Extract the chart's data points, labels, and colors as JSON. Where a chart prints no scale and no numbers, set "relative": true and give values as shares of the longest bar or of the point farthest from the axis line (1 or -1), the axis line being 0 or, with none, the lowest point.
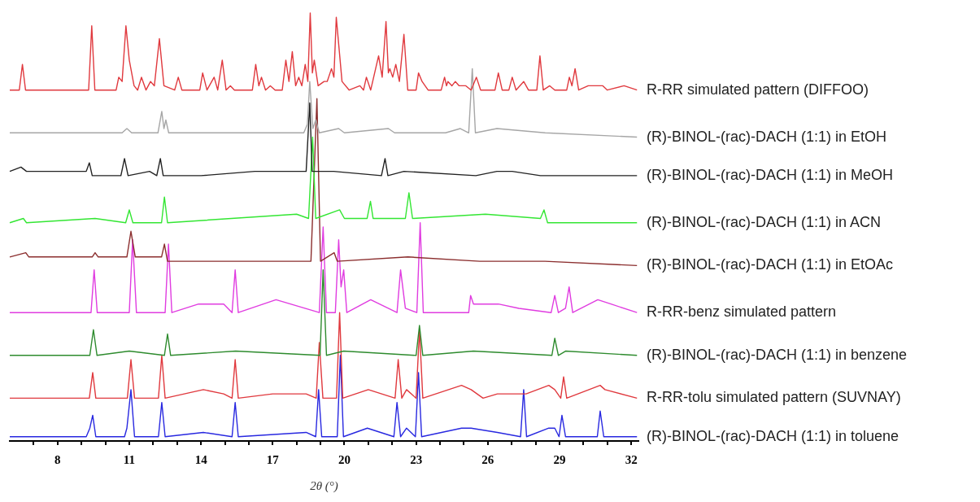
{
  "chart_data": {
    "type": "line",
    "xlabel": "2θ (°)",
    "relative": true,
    "grid": false,
    "legend": false,
    "marker": "none",
    "line_style": "solid",
    "xlim": [
      6,
      32.3
    ],
    "xticks": [
      {
        "value": 7,
        "label": null
      },
      8,
      {
        "value": 9,
        "label": null
      },
      {
        "value": 10,
        "label": null
      },
      11,
      {
        "value": 12,
        "label": null
      },
      {
        "value": 13,
        "label": null
      },
      14,
      {
        "value": 15,
        "label": null
      },
      {
        "value": 16,
        "label": null
      },
      17,
      {
        "value": 18,
        "label": null
      },
      {
        "value": 19,
        "label": null
      },
      20,
      {
        "value": 21,
        "label": null
      },
      {
        "value": 22,
        "label": null
      },
      23,
      {
        "value": 24,
        "label": null
      },
      {
        "value": 25,
        "label": null
      },
      26,
      {
        "value": 27,
        "label": null
      },
      {
        "value": 28,
        "label": null
      },
      29,
      {
        "value": 30,
        "label": null
      },
      {
        "value": 31,
        "label": null
      },
      32
    ],
    "series": [
      {
        "name": "R-RR simulated pattern (DIFFOO)",
        "color": "#e0393e",
        "x": [
          6.0,
          6.4,
          6.53,
          6.66,
          9.3,
          9.43,
          9.56,
          10.45,
          10.56,
          10.7,
          10.86,
          11.0,
          11.2,
          11.35,
          11.51,
          11.7,
          11.89,
          12.05,
          12.26,
          12.45,
          12.9,
          13.05,
          13.2,
          13.95,
          14.07,
          14.25,
          14.55,
          14.7,
          14.89,
          15.05,
          15.23,
          15.4,
          16.15,
          16.29,
          16.42,
          16.53,
          16.7,
          16.9,
          17.1,
          17.4,
          17.55,
          17.68,
          17.82,
          17.96,
          18.09,
          18.22,
          18.36,
          18.47,
          18.57,
          18.66,
          18.74,
          18.9,
          19.15,
          19.28,
          19.46,
          19.56,
          19.66,
          19.9,
          20.2,
          20.65,
          20.8,
          20.92,
          21.1,
          21.43,
          21.58,
          21.74,
          21.84,
          21.9,
          22.02,
          22.15,
          22.3,
          22.49,
          22.65,
          23.0,
          23.1,
          23.25,
          23.5,
          24.05,
          24.19,
          24.27,
          24.33,
          24.5,
          24.64,
          24.8,
          25.08,
          25.3,
          25.52,
          25.7,
          26.3,
          26.44,
          26.6,
          26.88,
          27.02,
          27.18,
          27.5,
          27.7,
          28.05,
          28.18,
          28.32,
          28.59,
          28.8,
          29.3,
          29.41,
          29.52,
          29.65,
          29.8,
          30.2,
          30.81,
          31.0,
          31.7,
          32.24
        ],
        "values": [
          0.82,
          0.82,
          0.88,
          0.82,
          0.82,
          0.97,
          0.82,
          0.82,
          0.85,
          0.84,
          0.97,
          0.89,
          0.83,
          0.82,
          0.85,
          0.82,
          0.84,
          0.83,
          0.94,
          0.83,
          0.82,
          0.85,
          0.82,
          0.82,
          0.86,
          0.82,
          0.85,
          0.82,
          0.89,
          0.82,
          0.83,
          0.82,
          0.82,
          0.88,
          0.83,
          0.85,
          0.82,
          0.83,
          0.82,
          0.82,
          0.89,
          0.84,
          0.91,
          0.83,
          0.85,
          0.83,
          0.88,
          0.84,
          1.0,
          0.86,
          0.89,
          0.83,
          0.84,
          0.84,
          0.87,
          0.85,
          0.99,
          0.84,
          0.82,
          0.83,
          0.82,
          0.85,
          0.82,
          0.9,
          0.85,
          0.98,
          0.86,
          0.87,
          0.85,
          0.88,
          0.84,
          0.95,
          0.82,
          0.82,
          0.86,
          0.84,
          0.82,
          0.82,
          0.85,
          0.83,
          0.84,
          0.83,
          0.84,
          0.83,
          0.83,
          0.82,
          0.85,
          0.82,
          0.82,
          0.86,
          0.82,
          0.82,
          0.85,
          0.82,
          0.84,
          0.82,
          0.82,
          0.9,
          0.82,
          0.83,
          0.82,
          0.82,
          0.85,
          0.83,
          0.87,
          0.82,
          0.83,
          0.83,
          0.82,
          0.83,
          0.82
        ]
      },
      {
        "name": "(R)-BINOL-(rac)-DACH (1:1) in EtOH",
        "color": "#a6a6a6",
        "x": [
          6.0,
          9.5,
          10.7,
          10.9,
          11.1,
          12.2,
          12.36,
          12.45,
          12.53,
          12.65,
          18.3,
          18.45,
          18.55,
          18.68,
          18.8,
          18.95,
          19.76,
          20.0,
          21.84,
          22.1,
          24.23,
          24.85,
          25.2,
          25.35,
          25.48,
          26.38,
          28.4,
          32.24
        ],
        "values": [
          0.72,
          0.72,
          0.72,
          0.73,
          0.72,
          0.72,
          0.77,
          0.73,
          0.75,
          0.72,
          0.72,
          0.74,
          0.84,
          0.73,
          0.75,
          0.72,
          0.73,
          0.72,
          0.73,
          0.72,
          0.72,
          0.73,
          0.72,
          0.87,
          0.72,
          0.73,
          0.72,
          0.71
        ]
      },
      {
        "name": "(R)-BINOL-(rac)-DACH (1:1) in MeOH",
        "color": "#222222",
        "x": [
          6.0,
          6.47,
          6.7,
          9.2,
          9.33,
          9.45,
          10.65,
          10.8,
          10.95,
          11.85,
          12.15,
          12.3,
          12.42,
          14.0,
          16.25,
          17.82,
          18.4,
          18.55,
          18.65,
          18.74,
          19.55,
          21.55,
          21.7,
          21.82,
          22.49,
          25.5,
          26.38,
          27.02,
          28.2,
          32.24
        ],
        "values": [
          0.63,
          0.64,
          0.63,
          0.63,
          0.65,
          0.62,
          0.62,
          0.66,
          0.62,
          0.63,
          0.62,
          0.66,
          0.62,
          0.62,
          0.63,
          0.63,
          0.63,
          0.79,
          0.63,
          0.63,
          0.63,
          0.62,
          0.66,
          0.62,
          0.63,
          0.62,
          0.63,
          0.63,
          0.62,
          0.62
        ]
      },
      {
        "name": "(R)-BINOL-(rac)-DACH (1:1) in ACN",
        "color": "#33e633",
        "x": [
          6.0,
          6.57,
          6.7,
          9.57,
          10.85,
          11.0,
          11.15,
          12.35,
          12.47,
          12.6,
          18.0,
          18.5,
          18.67,
          18.8,
          19.8,
          20.0,
          20.95,
          21.09,
          21.2,
          22.55,
          22.7,
          22.85,
          25.9,
          28.2,
          28.35,
          28.5,
          32.24
        ],
        "values": [
          0.51,
          0.52,
          0.51,
          0.52,
          0.51,
          0.54,
          0.51,
          0.51,
          0.57,
          0.51,
          0.53,
          0.52,
          0.71,
          0.52,
          0.54,
          0.52,
          0.52,
          0.56,
          0.52,
          0.52,
          0.58,
          0.52,
          0.53,
          0.52,
          0.54,
          0.51,
          0.51
        ]
      },
      {
        "name": "(R)-BINOL-(rac)-DACH (1:1) in EtOAc",
        "color": "#8b2e2e",
        "x": [
          6.0,
          6.67,
          6.8,
          9.45,
          9.57,
          9.7,
          10.9,
          11.07,
          11.25,
          12.06,
          12.35,
          12.47,
          12.6,
          15.3,
          18.6,
          18.85,
          19.0,
          19.57,
          19.7,
          22.66,
          25.66,
          28.39,
          32.24
        ],
        "values": [
          0.43,
          0.44,
          0.43,
          0.43,
          0.44,
          0.43,
          0.43,
          0.49,
          0.43,
          0.43,
          0.43,
          0.46,
          0.42,
          0.42,
          0.42,
          0.8,
          0.42,
          0.44,
          0.42,
          0.43,
          0.42,
          0.42,
          0.41
        ]
      },
      {
        "name": "R-RR-benz simulated pattern",
        "color": "#e03ce0",
        "x": [
          6.0,
          9.4,
          9.53,
          9.66,
          11.0,
          11.14,
          11.3,
          12.5,
          12.64,
          12.78,
          13.9,
          14.95,
          15.3,
          15.43,
          15.56,
          17.14,
          18.95,
          19.11,
          19.25,
          19.62,
          19.76,
          19.86,
          19.97,
          20.1,
          21.1,
          22.2,
          22.35,
          22.55,
          23.03,
          23.17,
          23.3,
          25.2,
          25.28,
          25.4,
          26.44,
          27.3,
          28.65,
          28.8,
          28.95,
          29.25,
          29.4,
          29.55,
          30.6,
          31.15,
          32.24
        ],
        "values": [
          0.3,
          0.3,
          0.4,
          0.3,
          0.3,
          0.47,
          0.3,
          0.3,
          0.46,
          0.3,
          0.32,
          0.32,
          0.3,
          0.4,
          0.3,
          0.33,
          0.3,
          0.5,
          0.3,
          0.3,
          0.47,
          0.36,
          0.4,
          0.3,
          0.33,
          0.3,
          0.4,
          0.31,
          0.3,
          0.51,
          0.3,
          0.3,
          0.34,
          0.32,
          0.32,
          0.31,
          0.3,
          0.34,
          0.3,
          0.31,
          0.36,
          0.3,
          0.33,
          0.32,
          0.3
        ]
      },
      {
        "name": "(R)-BINOL-(rac)-DACH (1:1) in benzene",
        "color": "#2e8b2e",
        "x": [
          6.0,
          9.35,
          9.5,
          9.65,
          11.0,
          12.47,
          12.6,
          12.73,
          15.45,
          18.98,
          19.11,
          19.25,
          19.97,
          23.0,
          23.14,
          23.28,
          25.4,
          28.68,
          28.8,
          28.95,
          29.25,
          32.24
        ],
        "values": [
          0.2,
          0.2,
          0.26,
          0.2,
          0.21,
          0.2,
          0.25,
          0.2,
          0.21,
          0.2,
          0.4,
          0.2,
          0.21,
          0.2,
          0.27,
          0.2,
          0.21,
          0.2,
          0.24,
          0.2,
          0.21,
          0.2
        ]
      },
      {
        "name": "R-RR-tolu simulated pattern (SUVNAY)",
        "color": "#e0393e",
        "x": [
          6.0,
          9.33,
          9.47,
          9.6,
          10.92,
          11.07,
          11.22,
          12.22,
          12.36,
          12.5,
          14.1,
          14.95,
          15.3,
          15.43,
          15.56,
          17.0,
          18.4,
          18.82,
          18.95,
          19.1,
          19.67,
          19.8,
          19.93,
          21.0,
          22.12,
          22.25,
          22.4,
          22.6,
          23.0,
          23.14,
          23.28,
          24.9,
          25.3,
          25.8,
          26.4,
          27.6,
          28.55,
          28.8,
          29.05,
          29.17,
          29.3,
          30.7,
          30.9,
          32.24
        ],
        "values": [
          0.1,
          0.1,
          0.16,
          0.1,
          0.1,
          0.19,
          0.1,
          0.1,
          0.2,
          0.1,
          0.12,
          0.11,
          0.1,
          0.19,
          0.1,
          0.11,
          0.11,
          0.1,
          0.23,
          0.1,
          0.1,
          0.3,
          0.1,
          0.12,
          0.1,
          0.19,
          0.1,
          0.12,
          0.1,
          0.26,
          0.1,
          0.13,
          0.12,
          0.1,
          0.11,
          0.11,
          0.13,
          0.12,
          0.1,
          0.15,
          0.1,
          0.13,
          0.12,
          0.1
        ]
      },
      {
        "name": "(R)-BINOL-(rac)-DACH (1:1) in toluene",
        "color": "#2828e0",
        "x": [
          6.0,
          9.2,
          9.35,
          9.47,
          9.6,
          10.8,
          10.9,
          11.07,
          11.22,
          12.22,
          12.36,
          12.5,
          14.1,
          15.3,
          15.43,
          15.56,
          18.4,
          18.8,
          18.92,
          19.05,
          19.7,
          19.83,
          19.96,
          20.96,
          22.07,
          22.2,
          22.35,
          22.6,
          22.97,
          23.1,
          23.23,
          24.9,
          25.3,
          26.4,
          27.37,
          27.5,
          27.62,
          28.55,
          28.8,
          28.98,
          29.1,
          29.25,
          30.58,
          30.7,
          30.85,
          32.24
        ],
        "values": [
          0.01,
          0.01,
          0.03,
          0.06,
          0.01,
          0.01,
          0.03,
          0.12,
          0.01,
          0.01,
          0.09,
          0.01,
          0.02,
          0.01,
          0.09,
          0.01,
          0.02,
          0.01,
          0.12,
          0.01,
          0.01,
          0.2,
          0.01,
          0.03,
          0.01,
          0.09,
          0.01,
          0.03,
          0.01,
          0.16,
          0.01,
          0.03,
          0.03,
          0.02,
          0.01,
          0.12,
          0.01,
          0.03,
          0.03,
          0.01,
          0.06,
          0.01,
          0.01,
          0.07,
          0.01,
          0.01
        ]
      }
    ]
  }
}
